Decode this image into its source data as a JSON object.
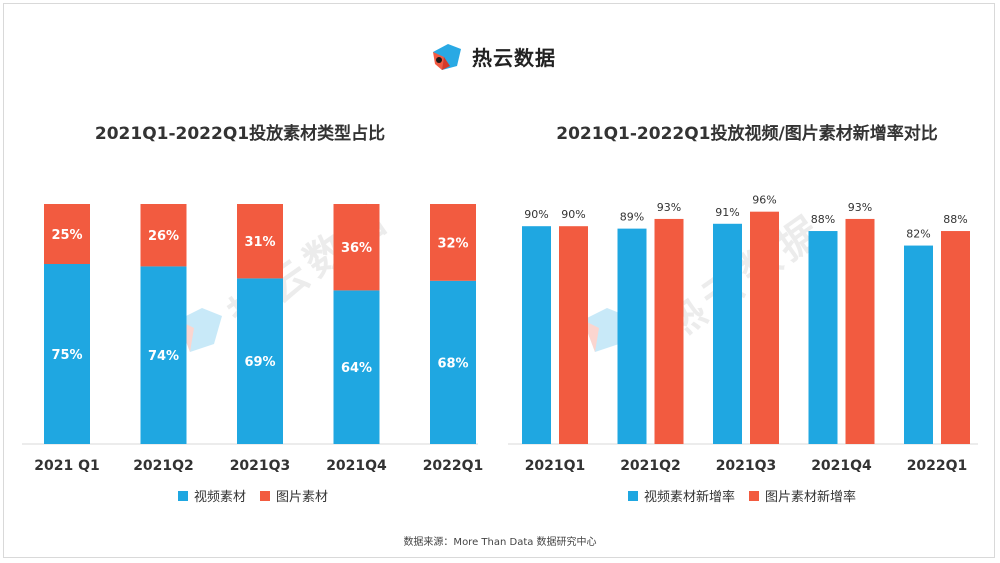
{
  "brand": {
    "name": "热云数据",
    "logo_icon": "reyun-logo-icon",
    "colors": {
      "blue": "#29a9e4",
      "red": "#f25a42",
      "dark": "#d63a2a"
    }
  },
  "watermark": {
    "text": "热云数据"
  },
  "colors": {
    "video": "#1fa7e1",
    "image": "#f25b40",
    "axis": "#d9d9d9"
  },
  "source": {
    "text": "数据来源：More Than Data 数据研究中心"
  },
  "chart_data": [
    {
      "type": "bar",
      "stacked": true,
      "title": "2021Q1-2022Q1投放素材类型占比",
      "categories": [
        "2021 Q1",
        "2021Q2",
        "2021Q3",
        "2021Q4",
        "2022Q1"
      ],
      "series": [
        {
          "name": "视频素材",
          "values": [
            75,
            74,
            69,
            64,
            68
          ],
          "labels": [
            "75%",
            "74%",
            "69%",
            "64%",
            "68%"
          ]
        },
        {
          "name": "图片素材",
          "values": [
            25,
            26,
            31,
            36,
            32
          ],
          "labels": [
            "25%",
            "26%",
            "31%",
            "36%",
            "32%"
          ]
        }
      ],
      "ylim": [
        0,
        100
      ],
      "legend": "bottom-center",
      "grid": false
    },
    {
      "type": "bar",
      "stacked": false,
      "title": "2021Q1-2022Q1投放视频/图片素材新增率对比",
      "categories": [
        "2021Q1",
        "2021Q2",
        "2021Q3",
        "2021Q4",
        "2022Q1"
      ],
      "series": [
        {
          "name": "视频素材新增率",
          "values": [
            90,
            89,
            91,
            88,
            82
          ],
          "labels": [
            "90%",
            "89%",
            "91%",
            "88%",
            "82%"
          ]
        },
        {
          "name": "图片素材新增率",
          "values": [
            90,
            93,
            96,
            93,
            88
          ],
          "labels": [
            "90%",
            "93%",
            "96%",
            "93%",
            "88%"
          ]
        }
      ],
      "ylim": [
        0,
        100
      ],
      "legend": "bottom-center",
      "grid": false
    }
  ]
}
